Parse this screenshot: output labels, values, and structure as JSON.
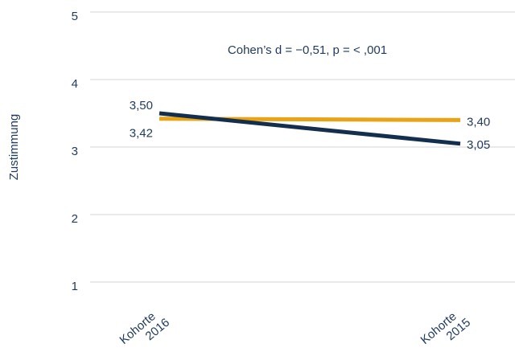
{
  "chart_data": {
    "type": "line",
    "ylabel": "Zustimmung",
    "ylim": [
      1,
      5
    ],
    "yticks": [
      "1",
      "2",
      "3",
      "4",
      "5"
    ],
    "grid": true,
    "categories": [
      "Kohorte 2016",
      "Kohorte 2015"
    ],
    "category_lines": [
      [
        "Kohorte",
        "2016"
      ],
      [
        "Kohorte",
        "2015"
      ]
    ],
    "annotation": "Cohen’s d = −0,51, p = < ,001",
    "series": [
      {
        "color": "#E8A317",
        "values": [
          3.42,
          3.4
        ],
        "value_labels": [
          "3,42",
          "3,40"
        ]
      },
      {
        "color": "#142F4E",
        "values": [
          3.5,
          3.05
        ],
        "value_labels": [
          "3,50",
          "3,05"
        ]
      }
    ]
  }
}
